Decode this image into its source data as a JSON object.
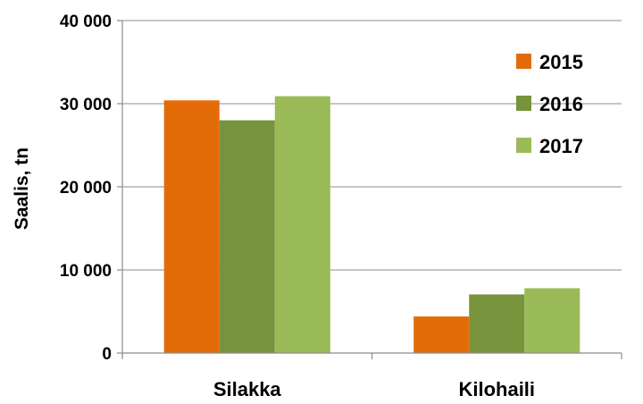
{
  "chart_data": {
    "type": "bar",
    "title": "",
    "xlabel": "",
    "ylabel": "Saalis, tn",
    "categories": [
      "Silakka",
      "Kilohaili"
    ],
    "series": [
      {
        "name": "2015",
        "color": "#e36c09",
        "values": [
          30400,
          4400
        ]
      },
      {
        "name": "2016",
        "color": "#77933c",
        "values": [
          28000,
          7050
        ]
      },
      {
        "name": "2017",
        "color": "#9bbb59",
        "values": [
          30900,
          7800
        ]
      }
    ],
    "ylim": [
      0,
      40000
    ],
    "yticks": [
      0,
      10000,
      20000,
      30000,
      40000
    ],
    "ytick_labels": [
      "0",
      "10 000",
      "20 000",
      "30 000",
      "40 000"
    ],
    "grid": true,
    "legend_position": "top-right"
  }
}
